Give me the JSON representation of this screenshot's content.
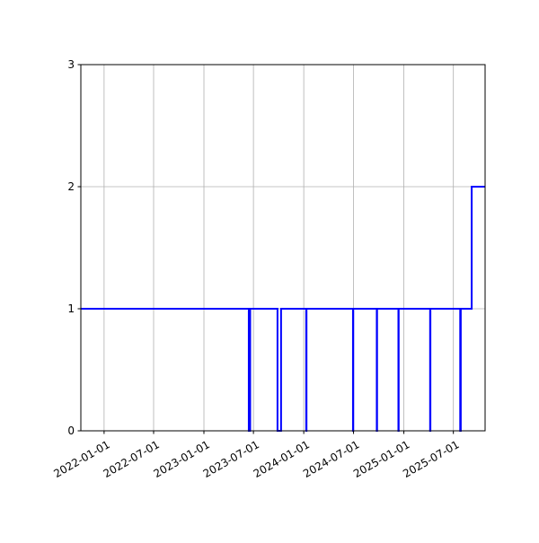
{
  "chart_data": {
    "type": "line",
    "step": "post",
    "title": "",
    "xlabel": "",
    "ylabel": "",
    "xlim": [
      "2021-10-08",
      "2025-10-25"
    ],
    "ylim": [
      0,
      3
    ],
    "grid": true,
    "x_ticks": [
      "2022-01-01",
      "2022-07-01",
      "2023-01-01",
      "2023-07-01",
      "2024-01-01",
      "2024-07-01",
      "2025-01-01",
      "2025-07-01"
    ],
    "y_ticks": [
      0,
      1,
      2,
      3
    ],
    "series": [
      {
        "color": "#0000ff",
        "points": [
          [
            "2021-10-08",
            1
          ],
          [
            "2023-06-14",
            0
          ],
          [
            "2023-06-19",
            1
          ],
          [
            "2023-09-27",
            0
          ],
          [
            "2023-10-10",
            1
          ],
          [
            "2024-01-10",
            0
          ],
          [
            "2024-01-11",
            1
          ],
          [
            "2024-06-29",
            0
          ],
          [
            "2024-06-30",
            1
          ],
          [
            "2024-09-24",
            0
          ],
          [
            "2024-09-25",
            1
          ],
          [
            "2024-12-12",
            0
          ],
          [
            "2024-12-13",
            1
          ],
          [
            "2025-04-07",
            0
          ],
          [
            "2025-04-08",
            1
          ],
          [
            "2025-07-26",
            0
          ],
          [
            "2025-07-28",
            1
          ],
          [
            "2025-09-06",
            2
          ],
          [
            "2025-10-25",
            2
          ]
        ]
      }
    ]
  }
}
